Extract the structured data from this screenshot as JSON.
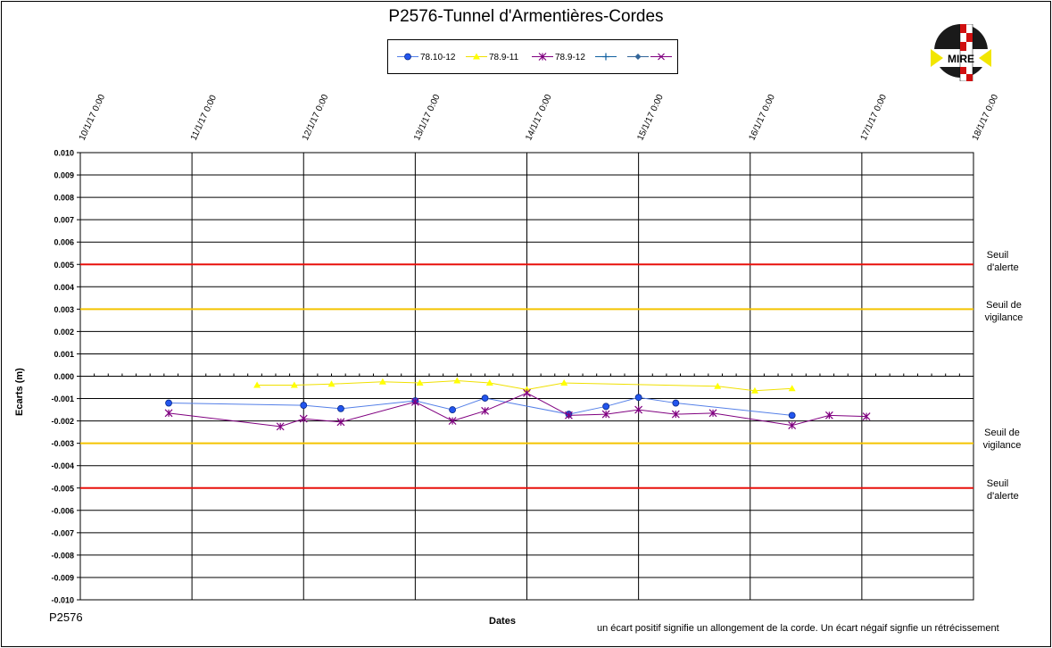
{
  "title": "P2576-Tunnel  d'Armentières-Cordes",
  "footer_id": "P2576",
  "footnote": "un écart positif signifie un allongement  de la corde.  Un écart négaif signfie  un rétrécissement",
  "logo": {
    "text": "MIRE"
  },
  "thresholds": [
    {
      "label_line1": "Seuil",
      "label_line2": "d'alerte",
      "value": 0.005,
      "color": "#e8100c"
    },
    {
      "label_line1": "Seuil de",
      "label_line2": "vigilance",
      "value": 0.003,
      "color": "#f4c400"
    },
    {
      "label_line1": "Seuil de",
      "label_line2": "vigilance",
      "value": -0.003,
      "color": "#f4c400"
    },
    {
      "label_line1": "Seuil",
      "label_line2": "d'alerte",
      "value": -0.005,
      "color": "#e8100c"
    }
  ],
  "chart_data": {
    "type": "line",
    "title": "P2576-Tunnel  d'Armentières-Cordes",
    "xlabel": "Dates",
    "ylabel": "Ecarts (m)",
    "x_ticks": [
      "10/1/17 0:00",
      "11/1/17 0:00",
      "12/1/17 0:00",
      "13/1/17 0:00",
      "14/1/17 0:00",
      "15/1/17 0:00",
      "16/1/17 0:00",
      "17/1/17 0:00",
      "18/1/17 0:00"
    ],
    "y_ticks": [
      "0.010",
      "0.009",
      "0.008",
      "0.007",
      "0.006",
      "0.005",
      "0.004",
      "0.003",
      "0.002",
      "0.001",
      "0.000",
      "-0.001",
      "-0.002",
      "-0.003",
      "-0.004",
      "-0.005",
      "-0.006",
      "-0.007",
      "-0.008",
      "-0.009",
      "-0.010"
    ],
    "xlim_days": [
      0,
      8
    ],
    "ylim": [
      -0.01,
      0.01
    ],
    "grid": true,
    "legend_position": "top-center",
    "series": [
      {
        "name": "78.10-12",
        "color": "#2255ee",
        "line_color": "#5580e8",
        "marker": "circle",
        "x": [
          "10/1/17 19:00",
          "12/1/17 0:00",
          "12/1/17 8:00",
          "13/1/17 0:00",
          "13/1/17 8:00",
          "13/1/17 15:00",
          "14/1/17 9:00",
          "14/1/17 17:00",
          "15/1/17 0:00",
          "15/1/17 8:00",
          "16/1/17 9:00"
        ],
        "values": [
          -0.0012,
          -0.0013,
          -0.00145,
          -0.0011,
          -0.0015,
          -0.00098,
          -0.0017,
          -0.00135,
          -0.00095,
          -0.0012,
          -0.00175
        ]
      },
      {
        "name": "78.9-11",
        "color": "#ffff00",
        "line_color": "#f0e000",
        "marker": "triangle",
        "x": [
          "11/1/17 14:00",
          "11/1/17 22:00",
          "12/1/17 6:00",
          "12/1/17 17:00",
          "13/1/17 1:00",
          "13/1/17 9:00",
          "13/1/17 16:00",
          "14/1/17 0:00",
          "14/1/17 8:00",
          "15/1/17 17:00",
          "16/1/17 1:00",
          "16/1/17 9:00"
        ],
        "values": [
          -0.0004,
          -0.0004,
          -0.00035,
          -0.00025,
          -0.0003,
          -0.0002,
          -0.0003,
          -0.0006,
          -0.0003,
          -0.00045,
          -0.00065,
          -0.00055
        ]
      },
      {
        "name": "78.9-12",
        "color": "#800080",
        "line_color": "#800080",
        "marker": "star",
        "x": [
          "10/1/17 19:00",
          "11/1/17 19:00",
          "12/1/17 0:00",
          "12/1/17 8:00",
          "13/1/17 0:00",
          "13/1/17 8:00",
          "13/1/17 15:00",
          "14/1/17 0:00",
          "14/1/17 9:00",
          "14/1/17 17:00",
          "15/1/17 0:00",
          "15/1/17 8:00",
          "15/1/17 16:00",
          "16/1/17 9:00",
          "16/1/17 17:00",
          "17/1/17 1:00"
        ],
        "values": [
          -0.00165,
          -0.00225,
          -0.0019,
          -0.00205,
          -0.00115,
          -0.002,
          -0.00155,
          -0.00075,
          -0.00175,
          -0.0017,
          -0.0015,
          -0.0017,
          -0.00165,
          -0.0022,
          -0.00175,
          -0.0018
        ]
      },
      {
        "name": "",
        "color": "#1060a0",
        "marker": "plus",
        "x": [],
        "values": []
      },
      {
        "name": "",
        "color": "#336699",
        "marker": "diamond",
        "x": [],
        "values": []
      },
      {
        "name": "",
        "color": "#800080",
        "marker": "x",
        "x": [],
        "values": []
      }
    ]
  }
}
